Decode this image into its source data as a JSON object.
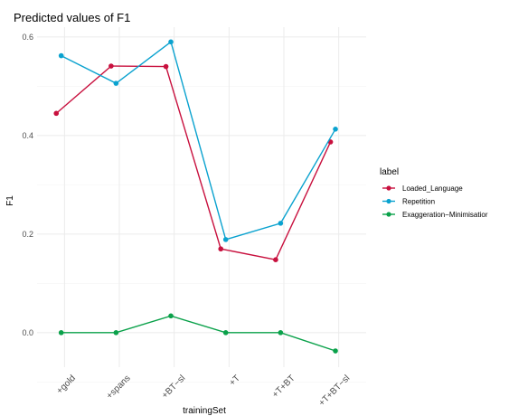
{
  "chart_data": {
    "type": "line",
    "title": "Predicted values of F1",
    "xlabel": "trainingSet",
    "ylabel": "F1",
    "categories": [
      "+gold",
      "+spans",
      "+BT−sl",
      "+T",
      "+T+BT",
      "+T+BT−sl"
    ],
    "ylim": [
      -0.07,
      0.62
    ],
    "yticks": [
      0.0,
      0.2,
      0.4,
      0.6
    ],
    "ytick_labels": [
      "0.0",
      "0.2",
      "0.4",
      "0.6"
    ],
    "grid": true,
    "legend": {
      "title": "label",
      "position": "right"
    },
    "series": [
      {
        "name": "Loaded_Language",
        "color": "#c8103e",
        "values": [
          0.445,
          0.541,
          0.54,
          0.17,
          0.148,
          0.387
        ],
        "x_offset": -0.15
      },
      {
        "name": "Repetition",
        "color": "#0aa2cf",
        "values": [
          0.562,
          0.506,
          0.59,
          0.189,
          0.222,
          0.413
        ],
        "x_offset": -0.06
      },
      {
        "name": "Exaggeration−Minimisatior",
        "color": "#0aa14a",
        "values": [
          0.0,
          0.0,
          0.034,
          0.0,
          0.0,
          -0.037
        ],
        "x_offset": -0.06
      }
    ]
  }
}
